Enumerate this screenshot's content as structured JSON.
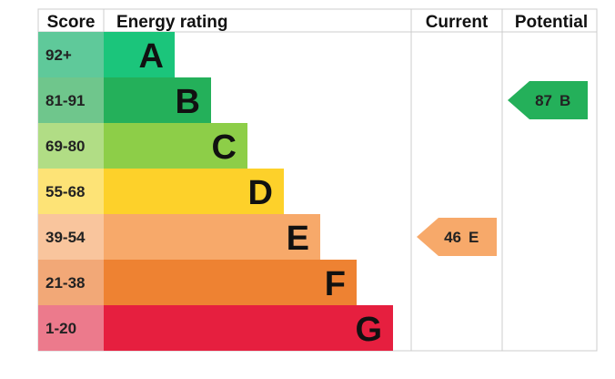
{
  "headers": {
    "score": "Score",
    "rating": "Energy rating",
    "current": "Current",
    "potential": "Potential"
  },
  "chart_data": {
    "type": "bar",
    "bands": [
      {
        "letter": "A",
        "range": "92+",
        "min": 92,
        "max": 100,
        "color": "#1bc57b",
        "score_bg": "#5fc99a"
      },
      {
        "letter": "B",
        "range": "81-91",
        "min": 81,
        "max": 91,
        "color": "#24b05a",
        "score_bg": "#6fc68c"
      },
      {
        "letter": "C",
        "range": "69-80",
        "min": 69,
        "max": 80,
        "color": "#8dce48",
        "score_bg": "#b1dd85"
      },
      {
        "letter": "D",
        "range": "55-68",
        "min": 55,
        "max": 68,
        "color": "#fdd12a",
        "score_bg": "#fde376"
      },
      {
        "letter": "E",
        "range": "39-54",
        "min": 39,
        "max": 54,
        "color": "#f7a96a",
        "score_bg": "#f9c59d"
      },
      {
        "letter": "F",
        "range": "21-38",
        "min": 21,
        "max": 38,
        "color": "#ee8232",
        "score_bg": "#f2a877"
      },
      {
        "letter": "G",
        "range": "1-20",
        "min": 1,
        "max": 20,
        "color": "#e61f3f",
        "score_bg": "#ec7a8c"
      }
    ],
    "current": {
      "score": 46,
      "letter": "E",
      "color": "#f7a96a"
    },
    "potential": {
      "score": 87,
      "letter": "B",
      "color": "#24b05a"
    }
  }
}
